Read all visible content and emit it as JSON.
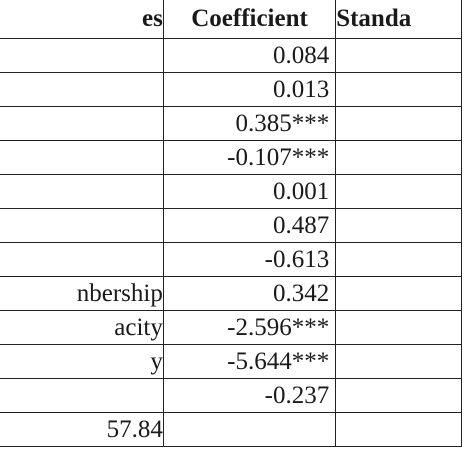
{
  "table": {
    "headers": {
      "variable": "es",
      "coefficient": "Coefficient",
      "standard_error": "Standa"
    },
    "rows": [
      {
        "variable": "",
        "coefficient": "0.084",
        "se": ""
      },
      {
        "variable": "",
        "coefficient": "0.013",
        "se": ""
      },
      {
        "variable": "",
        "coefficient": "0.385***",
        "se": ""
      },
      {
        "variable": "",
        "coefficient": "-0.107***",
        "se": ""
      },
      {
        "variable": "",
        "coefficient": "0.001",
        "se": ""
      },
      {
        "variable": "",
        "coefficient": "0.487",
        "se": ""
      },
      {
        "variable": "",
        "coefficient": "-0.613",
        "se": ""
      },
      {
        "variable": "nbership",
        "coefficient": "0.342",
        "se": ""
      },
      {
        "variable": "acity",
        "coefficient": "-2.596***",
        "se": ""
      },
      {
        "variable": "y",
        "coefficient": "-5.644***",
        "se": ""
      },
      {
        "variable": "",
        "coefficient": "-0.237",
        "se": ""
      },
      {
        "variable": "57.84",
        "coefficient": "",
        "se": ""
      }
    ]
  }
}
